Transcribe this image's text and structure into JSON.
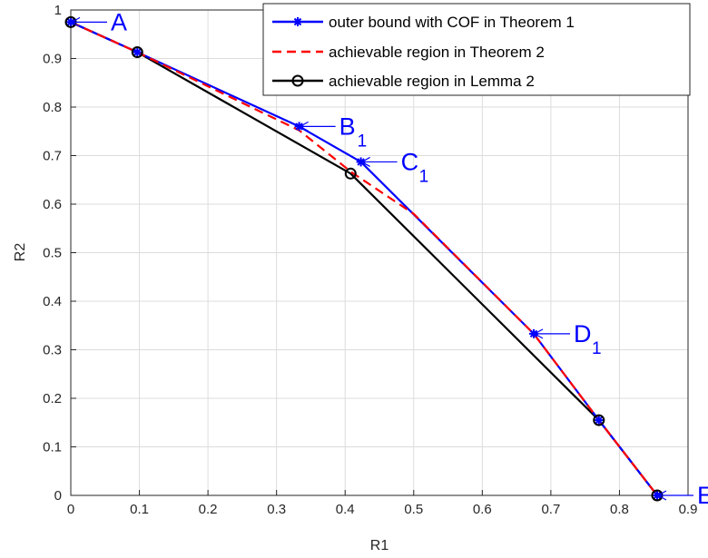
{
  "chart_data": {
    "type": "line",
    "xlabel": "R1",
    "ylabel": "R2",
    "xlim": [
      0,
      0.9
    ],
    "ylim": [
      0,
      1
    ],
    "xticks": [
      "0",
      "0.1",
      "0.2",
      "0.3",
      "0.4",
      "0.5",
      "0.6",
      "0.7",
      "0.8",
      "0.9"
    ],
    "yticks": [
      "0",
      "0.1",
      "0.2",
      "0.3",
      "0.4",
      "0.5",
      "0.6",
      "0.7",
      "0.8",
      "0.9",
      "1"
    ],
    "grid": true,
    "legend_position": "top-right",
    "series": [
      {
        "name": "outer bound with COF in Theorem 1",
        "color": "#0000ff",
        "line_style": "solid",
        "marker": "asterisk",
        "x": [
          0,
          0.097,
          0.333,
          0.423,
          0.675,
          0.77,
          0.855
        ],
        "y": [
          0.975,
          0.913,
          0.76,
          0.687,
          0.333,
          0.155,
          0
        ]
      },
      {
        "name": "achievable region in Theorem 2",
        "color": "#ff0000",
        "line_style": "dashed",
        "marker": "none",
        "x": [
          0,
          0.097,
          0.333,
          0.41,
          0.5,
          0.675,
          0.77,
          0.855
        ],
        "y": [
          0.975,
          0.913,
          0.752,
          0.665,
          0.58,
          0.333,
          0.155,
          0
        ]
      },
      {
        "name": "achievable region in Lemma 2",
        "color": "#000000",
        "line_style": "solid",
        "marker": "circle",
        "x": [
          0,
          0.097,
          0.408,
          0.77,
          0.855
        ],
        "y": [
          0.975,
          0.913,
          0.663,
          0.155,
          0
        ]
      }
    ],
    "annotations": [
      {
        "text": "A",
        "sub": "",
        "x": 0,
        "y": 0.975
      },
      {
        "text": "B",
        "sub": "1",
        "x": 0.333,
        "y": 0.76
      },
      {
        "text": "C",
        "sub": "1",
        "x": 0.423,
        "y": 0.687
      },
      {
        "text": "D",
        "sub": "1",
        "x": 0.675,
        "y": 0.333
      },
      {
        "text": "E",
        "sub": "",
        "x": 0.855,
        "y": 0
      }
    ],
    "annotation_color": "#0000ff"
  }
}
